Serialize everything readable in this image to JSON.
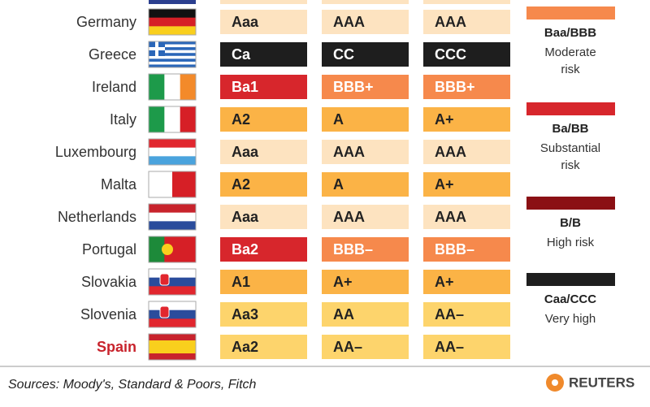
{
  "table": {
    "rows": [
      {
        "country": "Germany",
        "ratings": [
          "Aaa",
          "AAA",
          "AAA"
        ],
        "colors": [
          "#fde3c0",
          "#fde3c0",
          "#fde3c0"
        ]
      },
      {
        "country": "Greece",
        "ratings": [
          "Ca",
          "CC",
          "CCC"
        ],
        "colors": [
          "#1e1e1e",
          "#1e1e1e",
          "#1e1e1e"
        ]
      },
      {
        "country": "Ireland",
        "ratings": [
          "Ba1",
          "BBB+",
          "BBB+"
        ],
        "colors": [
          "#d7262c",
          "#f6894c",
          "#f6894c"
        ]
      },
      {
        "country": "Italy",
        "ratings": [
          "A2",
          "A",
          "A+"
        ],
        "colors": [
          "#fbb346",
          "#fbb346",
          "#fbb346"
        ]
      },
      {
        "country": "Luxembourg",
        "ratings": [
          "Aaa",
          "AAA",
          "AAA"
        ],
        "colors": [
          "#fde3c0",
          "#fde3c0",
          "#fde3c0"
        ]
      },
      {
        "country": "Malta",
        "ratings": [
          "A2",
          "A",
          "A+"
        ],
        "colors": [
          "#fbb346",
          "#fbb346",
          "#fbb346"
        ]
      },
      {
        "country": "Netherlands",
        "ratings": [
          "Aaa",
          "AAA",
          "AAA"
        ],
        "colors": [
          "#fde3c0",
          "#fde3c0",
          "#fde3c0"
        ]
      },
      {
        "country": "Portugal",
        "ratings": [
          "Ba2",
          "BBB–",
          "BBB–"
        ],
        "colors": [
          "#d7262c",
          "#f6894c",
          "#f6894c"
        ]
      },
      {
        "country": "Slovakia",
        "ratings": [
          "A1",
          "A+",
          "A+"
        ],
        "colors": [
          "#fbb346",
          "#fbb346",
          "#fbb346"
        ]
      },
      {
        "country": "Slovenia",
        "ratings": [
          "Aa3",
          "AA",
          "AA–"
        ],
        "colors": [
          "#fdd46c",
          "#fdd46c",
          "#fdd46c"
        ]
      },
      {
        "country": "Spain",
        "ratings": [
          "Aa2",
          "AA–",
          "AA–"
        ],
        "colors": [
          "#fdd46c",
          "#fdd46c",
          "#fdd46c"
        ]
      }
    ]
  },
  "legend": [
    {
      "color": "#f6894c",
      "label": "Baa/BBB",
      "lines": [
        "Moderate",
        "risk"
      ]
    },
    {
      "color": "#d7262c",
      "label": "Ba/BB",
      "lines": [
        "Substantial",
        "risk"
      ]
    },
    {
      "color": "#8b1014",
      "label": "B/B",
      "lines": [
        "High risk"
      ]
    },
    {
      "color": "#1e1e1e",
      "label": "Caa/CCC",
      "lines": [
        "Very high"
      ]
    }
  ],
  "footer": {
    "source": "Sources: Moody's, Standard & Poors, Fitch",
    "logo": "REUTERS"
  }
}
